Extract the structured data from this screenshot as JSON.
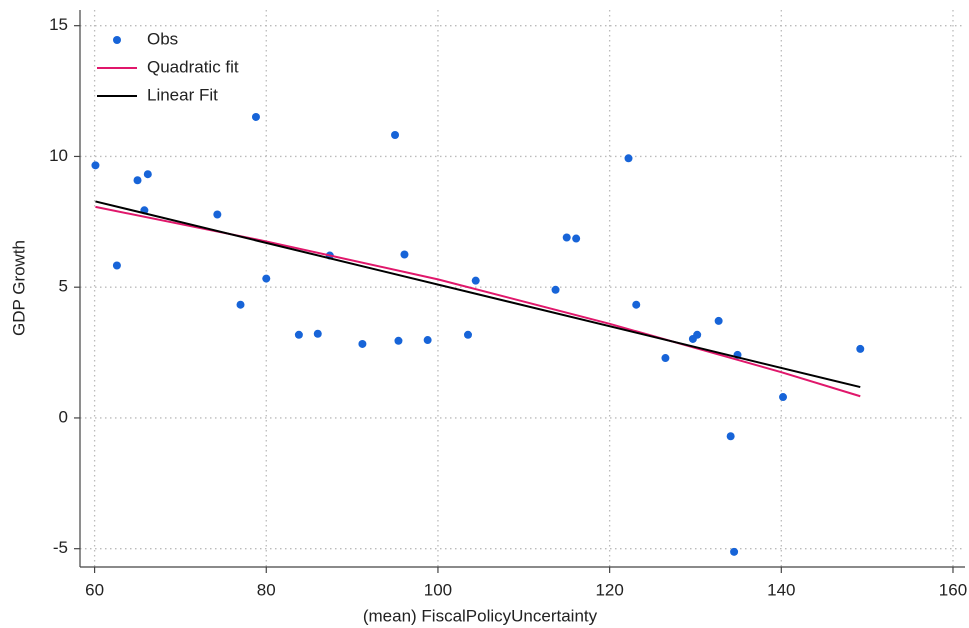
{
  "chart_data": {
    "type": "scatter",
    "xlabel": "(mean) FiscalPolicyUncertainty",
    "ylabel": "GDP Growth",
    "xlim": [
      58.3,
      161.4
    ],
    "ylim": [
      -5.7,
      15.6
    ],
    "xticks": [
      60,
      80,
      100,
      120,
      140,
      160
    ],
    "yticks": [
      -5,
      0,
      5,
      10,
      15
    ],
    "grid": true,
    "legend": "top-left",
    "series": [
      {
        "name": "Obs",
        "style": "markers",
        "color": "#1764d8",
        "x": [
          60.1,
          62.6,
          65.0,
          65.8,
          66.2,
          74.3,
          77.0,
          78.8,
          80.0,
          83.8,
          86.0,
          87.4,
          91.2,
          95.0,
          95.4,
          96.1,
          98.8,
          103.5,
          104.4,
          113.7,
          115.0,
          116.1,
          122.2,
          123.1,
          126.5,
          129.7,
          130.2,
          132.7,
          134.1,
          134.9,
          134.5,
          140.2,
          149.2
        ],
        "values": [
          9.66,
          5.83,
          9.09,
          7.94,
          9.32,
          7.78,
          4.33,
          11.51,
          5.33,
          3.18,
          3.22,
          6.21,
          2.83,
          10.82,
          2.95,
          6.25,
          2.98,
          3.18,
          5.25,
          4.9,
          6.9,
          6.86,
          9.93,
          4.33,
          2.29,
          3.02,
          3.18,
          3.71,
          -0.7,
          2.41,
          -5.12,
          0.8,
          2.64
        ]
      },
      {
        "name": "Quadratic fit",
        "style": "line",
        "color": "#e0176b",
        "x": [
          60.1,
          80,
          100,
          120,
          140,
          149.2
        ],
        "values": [
          8.07,
          6.75,
          5.3,
          3.6,
          1.75,
          0.83
        ]
      },
      {
        "name": "Linear Fit",
        "style": "line",
        "color": "#000000",
        "x": [
          60.1,
          149.2
        ],
        "values": [
          8.28,
          1.18
        ]
      }
    ]
  }
}
